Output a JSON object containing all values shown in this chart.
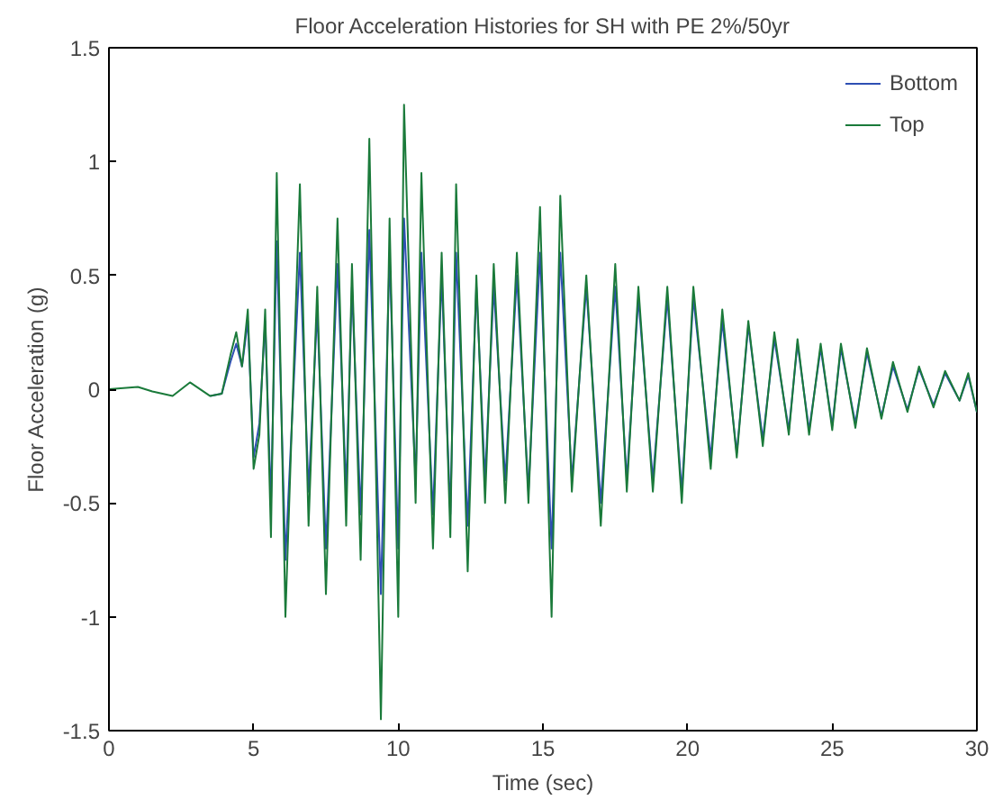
{
  "chart_data": {
    "type": "line",
    "title": "Floor Acceleration Histories for SH with PE 2%/50yr",
    "xlabel": "Time (sec)",
    "ylabel": "Floor Acceleration (g)",
    "x": [
      0,
      1,
      1.5,
      2.2,
      2.8,
      3.5,
      3.9,
      4.2,
      4.4,
      4.6,
      4.8,
      5.0,
      5.2,
      5.4,
      5.6,
      5.8,
      6.1,
      6.6,
      6.9,
      7.2,
      7.5,
      7.9,
      8.2,
      8.4,
      8.7,
      9.0,
      9.4,
      9.7,
      10.0,
      10.2,
      10.6,
      10.8,
      11.2,
      11.5,
      11.8,
      12.0,
      12.4,
      12.7,
      13.0,
      13.3,
      13.7,
      14.1,
      14.5,
      14.9,
      15.3,
      15.6,
      16.0,
      16.5,
      17.0,
      17.5,
      17.9,
      18.3,
      18.8,
      19.3,
      19.8,
      20.2,
      20.8,
      21.2,
      21.7,
      22.1,
      22.6,
      23.0,
      23.5,
      23.8,
      24.2,
      24.6,
      25.0,
      25.3,
      25.8,
      26.2,
      26.7,
      27.1,
      27.6,
      28.0,
      28.5,
      28.9,
      29.4,
      29.7,
      30
    ],
    "series": [
      {
        "name": "Bottom",
        "color": "#2e4fb3",
        "values": [
          null,
          null,
          null,
          null,
          null,
          -0.03,
          -0.02,
          0.12,
          0.2,
          0.1,
          0.3,
          -0.3,
          -0.15,
          0.3,
          -0.5,
          0.65,
          -0.75,
          0.6,
          -0.45,
          0.35,
          -0.7,
          0.55,
          -0.45,
          0.45,
          -0.55,
          0.7,
          -0.9,
          0.6,
          -0.7,
          0.75,
          -0.4,
          0.6,
          -0.55,
          0.5,
          -0.55,
          0.6,
          -0.6,
          0.45,
          -0.4,
          0.45,
          -0.4,
          0.5,
          -0.45,
          0.6,
          -0.7,
          0.6,
          -0.4,
          0.45,
          -0.5,
          0.45,
          -0.4,
          0.4,
          -0.4,
          0.4,
          -0.45,
          0.4,
          -0.3,
          0.3,
          -0.28,
          0.28,
          -0.22,
          0.22,
          -0.18,
          0.2,
          -0.18,
          0.18,
          -0.16,
          0.18,
          -0.15,
          0.16,
          -0.12,
          0.1,
          -0.09,
          0.09,
          -0.07,
          0.07,
          -0.05,
          0.06,
          -0.1
        ]
      },
      {
        "name": "Top",
        "color": "#1a7a3a",
        "values": [
          0,
          0.01,
          -0.01,
          -0.03,
          0.03,
          -0.03,
          -0.02,
          0.15,
          0.25,
          0.1,
          0.35,
          -0.35,
          -0.2,
          0.35,
          -0.65,
          0.95,
          -1.0,
          0.9,
          -0.6,
          0.45,
          -0.9,
          0.75,
          -0.6,
          0.55,
          -0.75,
          1.1,
          -1.45,
          0.75,
          -1.0,
          1.25,
          -0.5,
          0.95,
          -0.7,
          0.6,
          -0.65,
          0.9,
          -0.8,
          0.5,
          -0.5,
          0.55,
          -0.5,
          0.6,
          -0.5,
          0.8,
          -1.0,
          0.85,
          -0.45,
          0.5,
          -0.6,
          0.55,
          -0.45,
          0.45,
          -0.45,
          0.45,
          -0.5,
          0.45,
          -0.35,
          0.35,
          -0.3,
          0.3,
          -0.25,
          0.25,
          -0.2,
          0.22,
          -0.2,
          0.2,
          -0.18,
          0.2,
          -0.17,
          0.18,
          -0.13,
          0.12,
          -0.1,
          0.1,
          -0.08,
          0.08,
          -0.05,
          0.07,
          -0.1
        ]
      }
    ],
    "xlim": [
      0,
      30
    ],
    "xticks": [
      0,
      5,
      10,
      15,
      20,
      25,
      30
    ],
    "ylim": [
      -1.5,
      1.5
    ],
    "yticks": [
      -1.5,
      -1,
      -0.5,
      0,
      0.5,
      1,
      1.5
    ],
    "grid": false,
    "legend": "top right",
    "marker": "none",
    "line_style": "solid"
  }
}
